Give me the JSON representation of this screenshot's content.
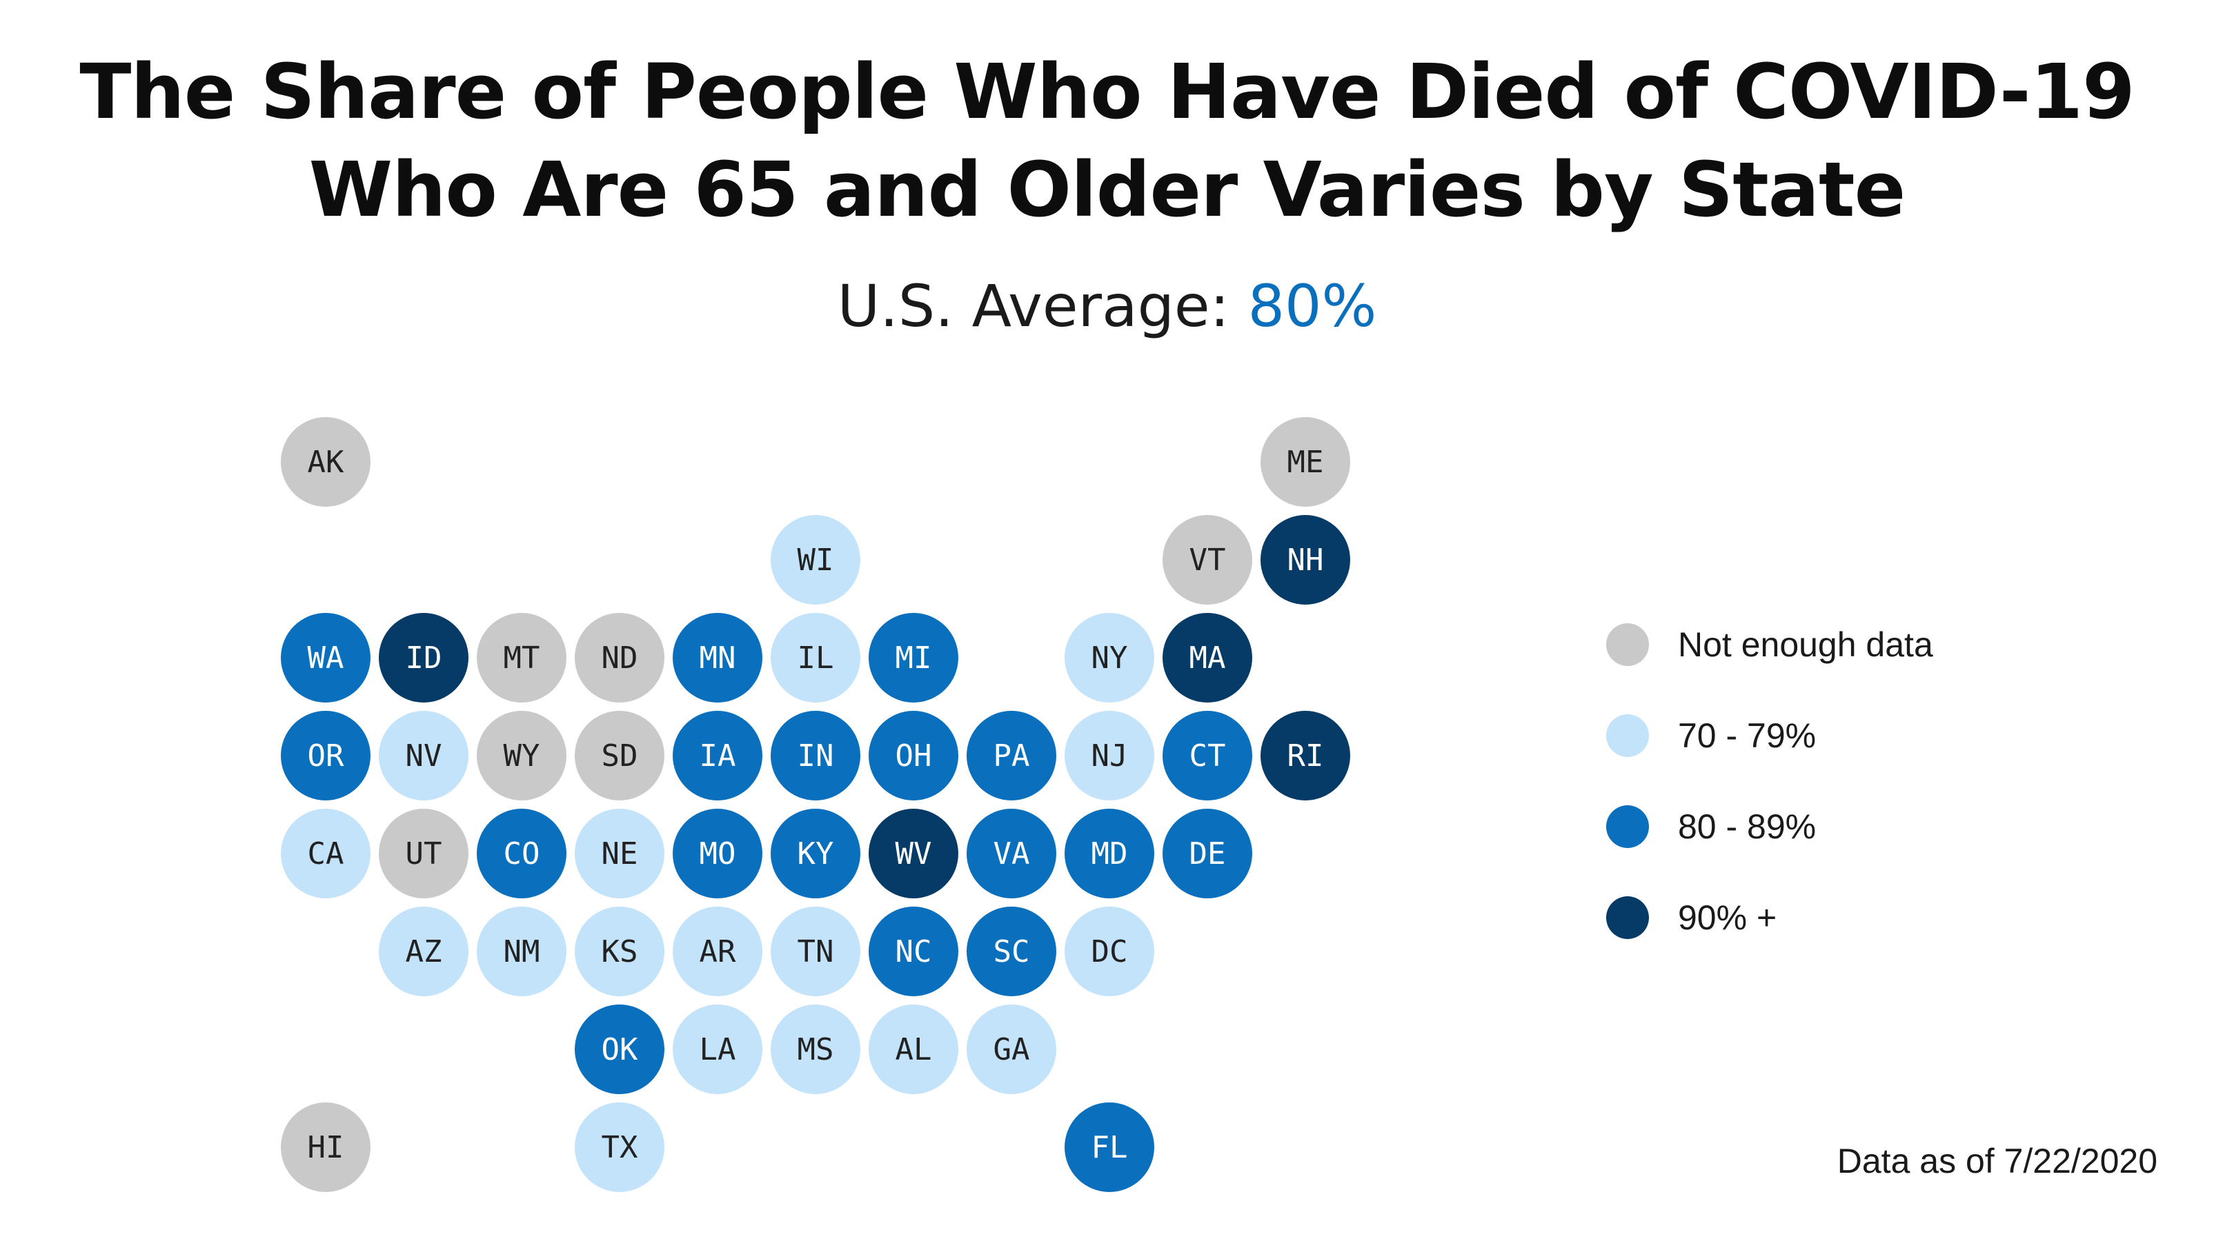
{
  "title_line1": "The Share of People Who Have Died of COVID-19",
  "title_line2": "Who Are 65 and Older Varies by State",
  "subtitle_prefix": "U.S. Average: ",
  "subtitle_value": "80%",
  "colors": {
    "no_data": "#c9c9c9",
    "light": "#c3e3fb",
    "mid": "#0a6fbd",
    "dark": "#053b66",
    "accent": "#0a6fbd"
  },
  "legend": [
    {
      "label": "Not enough data",
      "category": "no_data"
    },
    {
      "label": "70 - 79%",
      "category": "light"
    },
    {
      "label": "80 - 89%",
      "category": "mid"
    },
    {
      "label": "90% +",
      "category": "dark"
    }
  ],
  "note": "Data as of 7/22/2020",
  "chart_data": {
    "type": "tile-map",
    "title": "The Share of People Who Have Died of COVID-19 Who Are 65 and Older Varies by State",
    "subtitle": "U.S. Average: 80%",
    "grid": [
      {
        "state": "AK",
        "row": 0,
        "col": 0,
        "category": "no_data"
      },
      {
        "state": "ME",
        "row": 0,
        "col": 10,
        "category": "no_data"
      },
      {
        "state": "WI",
        "row": 1,
        "col": 5,
        "category": "light"
      },
      {
        "state": "VT",
        "row": 1,
        "col": 9,
        "category": "no_data"
      },
      {
        "state": "NH",
        "row": 1,
        "col": 10,
        "category": "dark"
      },
      {
        "state": "WA",
        "row": 2,
        "col": 0,
        "category": "mid"
      },
      {
        "state": "ID",
        "row": 2,
        "col": 1,
        "category": "dark"
      },
      {
        "state": "MT",
        "row": 2,
        "col": 2,
        "category": "no_data"
      },
      {
        "state": "ND",
        "row": 2,
        "col": 3,
        "category": "no_data"
      },
      {
        "state": "MN",
        "row": 2,
        "col": 4,
        "category": "mid"
      },
      {
        "state": "IL",
        "row": 2,
        "col": 5,
        "category": "light"
      },
      {
        "state": "MI",
        "row": 2,
        "col": 6,
        "category": "mid"
      },
      {
        "state": "NY",
        "row": 2,
        "col": 8,
        "category": "light"
      },
      {
        "state": "MA",
        "row": 2,
        "col": 9,
        "category": "dark"
      },
      {
        "state": "OR",
        "row": 3,
        "col": 0,
        "category": "mid"
      },
      {
        "state": "NV",
        "row": 3,
        "col": 1,
        "category": "light"
      },
      {
        "state": "WY",
        "row": 3,
        "col": 2,
        "category": "no_data"
      },
      {
        "state": "SD",
        "row": 3,
        "col": 3,
        "category": "no_data"
      },
      {
        "state": "IA",
        "row": 3,
        "col": 4,
        "category": "mid"
      },
      {
        "state": "IN",
        "row": 3,
        "col": 5,
        "category": "mid"
      },
      {
        "state": "OH",
        "row": 3,
        "col": 6,
        "category": "mid"
      },
      {
        "state": "PA",
        "row": 3,
        "col": 7,
        "category": "mid"
      },
      {
        "state": "NJ",
        "row": 3,
        "col": 8,
        "category": "light"
      },
      {
        "state": "CT",
        "row": 3,
        "col": 9,
        "category": "mid"
      },
      {
        "state": "RI",
        "row": 3,
        "col": 10,
        "category": "dark"
      },
      {
        "state": "CA",
        "row": 4,
        "col": 0,
        "category": "light"
      },
      {
        "state": "UT",
        "row": 4,
        "col": 1,
        "category": "no_data"
      },
      {
        "state": "CO",
        "row": 4,
        "col": 2,
        "category": "mid"
      },
      {
        "state": "NE",
        "row": 4,
        "col": 3,
        "category": "light"
      },
      {
        "state": "MO",
        "row": 4,
        "col": 4,
        "category": "mid"
      },
      {
        "state": "KY",
        "row": 4,
        "col": 5,
        "category": "mid"
      },
      {
        "state": "WV",
        "row": 4,
        "col": 6,
        "category": "dark"
      },
      {
        "state": "VA",
        "row": 4,
        "col": 7,
        "category": "mid"
      },
      {
        "state": "MD",
        "row": 4,
        "col": 8,
        "category": "mid"
      },
      {
        "state": "DE",
        "row": 4,
        "col": 9,
        "category": "mid"
      },
      {
        "state": "AZ",
        "row": 5,
        "col": 1,
        "category": "light"
      },
      {
        "state": "NM",
        "row": 5,
        "col": 2,
        "category": "light"
      },
      {
        "state": "KS",
        "row": 5,
        "col": 3,
        "category": "light"
      },
      {
        "state": "AR",
        "row": 5,
        "col": 4,
        "category": "light"
      },
      {
        "state": "TN",
        "row": 5,
        "col": 5,
        "category": "light"
      },
      {
        "state": "NC",
        "row": 5,
        "col": 6,
        "category": "mid"
      },
      {
        "state": "SC",
        "row": 5,
        "col": 7,
        "category": "mid"
      },
      {
        "state": "DC",
        "row": 5,
        "col": 8,
        "category": "light"
      },
      {
        "state": "OK",
        "row": 6,
        "col": 3,
        "category": "mid"
      },
      {
        "state": "LA",
        "row": 6,
        "col": 4,
        "category": "light"
      },
      {
        "state": "MS",
        "row": 6,
        "col": 5,
        "category": "light"
      },
      {
        "state": "AL",
        "row": 6,
        "col": 6,
        "category": "light"
      },
      {
        "state": "GA",
        "row": 6,
        "col": 7,
        "category": "light"
      },
      {
        "state": "HI",
        "row": 7,
        "col": 0,
        "category": "no_data"
      },
      {
        "state": "TX",
        "row": 7,
        "col": 3,
        "category": "light"
      },
      {
        "state": "FL",
        "row": 7,
        "col": 8,
        "category": "mid"
      }
    ]
  }
}
